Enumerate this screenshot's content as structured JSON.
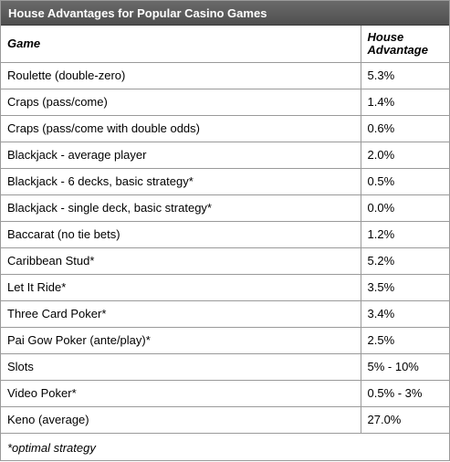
{
  "title": "House Advantages for Popular Casino Games",
  "columns": [
    "Game",
    "House Advantage"
  ],
  "rows": [
    {
      "game": "Roulette (double-zero)",
      "advantage": "5.3%"
    },
    {
      "game": "Craps (pass/come)",
      "advantage": "1.4%"
    },
    {
      "game": "Craps (pass/come with double odds)",
      "advantage": "0.6%"
    },
    {
      "game": "Blackjack - average player",
      "advantage": "2.0%"
    },
    {
      "game": "Blackjack - 6 decks, basic strategy*",
      "advantage": "0.5%"
    },
    {
      "game": "Blackjack - single deck, basic strategy*",
      "advantage": "0.0%"
    },
    {
      "game": "Baccarat (no tie bets)",
      "advantage": "1.2%"
    },
    {
      "game": "Caribbean Stud*",
      "advantage": "5.2%"
    },
    {
      "game": "Let It Ride*",
      "advantage": "3.5%"
    },
    {
      "game": "Three Card Poker*",
      "advantage": "3.4%"
    },
    {
      "game": "Pai Gow Poker (ante/play)*",
      "advantage": "2.5%"
    },
    {
      "game": "Slots",
      "advantage": "5% - 10%"
    },
    {
      "game": "Video Poker*",
      "advantage": "0.5% - 3%"
    },
    {
      "game": "Keno (average)",
      "advantage": "27.0%"
    }
  ],
  "footnote": "*optimal strategy"
}
